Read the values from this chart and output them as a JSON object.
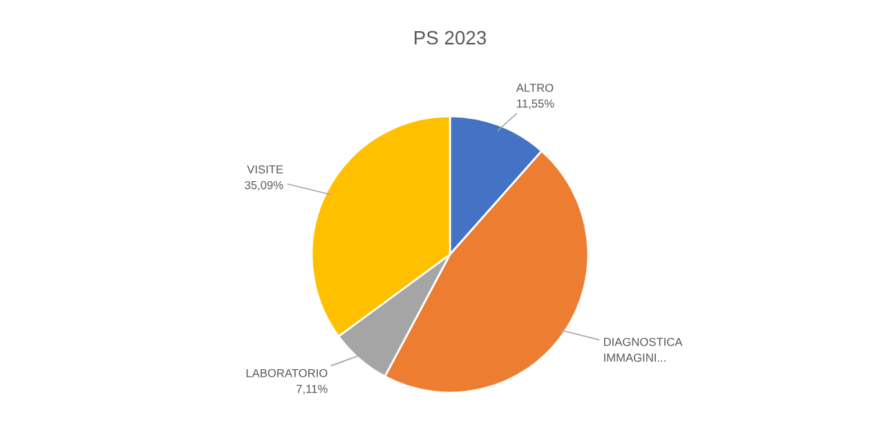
{
  "chart_data": {
    "type": "pie",
    "title": "PS 2023",
    "categories": [
      "ALTRO",
      "DIAGNOSTICA IMMAGINI...",
      "LABORATORIO",
      "VISITE"
    ],
    "values": [
      11.55,
      46.25,
      7.11,
      35.09
    ],
    "value_labels": [
      "11,55%",
      null,
      "7,11%",
      "35,09%"
    ],
    "colors": [
      "#4472c4",
      "#ed7d31",
      "#a5a5a5",
      "#ffc000"
    ],
    "legend": false
  }
}
